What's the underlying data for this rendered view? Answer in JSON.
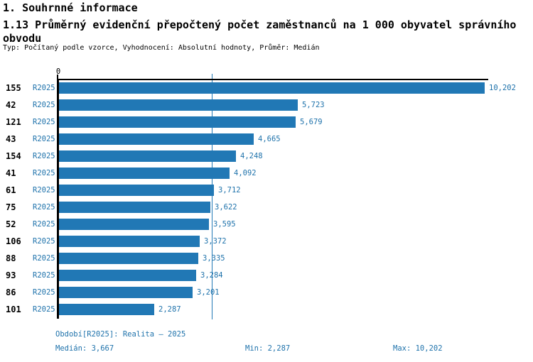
{
  "header": {
    "section_title": "1. Souhrnné informace",
    "indicator_title": "1.13 Průměrný evidenční přepočtený počet zaměstnanců na 1 000 obyvatel správního obvodu",
    "meta_line": "Typ: Počítaný podle vzorce, Vyhodnocení: Absolutní hodnoty, Průměr: Medián"
  },
  "chart_data": {
    "type": "bar",
    "orientation": "horizontal",
    "title": "1.13 Průměrný evidenční přepočtený počet zaměstnanců na 1 000 obyvatel správního obvodu",
    "axis_zero_label": "0",
    "period_label": "R2025",
    "categories": [
      "155",
      "42",
      "121",
      "43",
      "154",
      "41",
      "61",
      "75",
      "52",
      "106",
      "88",
      "93",
      "86",
      "101"
    ],
    "values": [
      10.202,
      5.723,
      5.679,
      4.665,
      4.248,
      4.092,
      3.712,
      3.622,
      3.595,
      3.372,
      3.335,
      3.284,
      3.201,
      2.287
    ],
    "value_labels": [
      "10,202",
      "5,723",
      "5,679",
      "4,665",
      "4,248",
      "4,092",
      "3,712",
      "3,622",
      "3,595",
      "3,372",
      "3,335",
      "3,284",
      "3,201",
      "2,287"
    ],
    "xlim": [
      0,
      10.27
    ],
    "median": 3.667,
    "min": 2.287,
    "max": 10.202,
    "grid": false,
    "legend_position": "none"
  },
  "colors": {
    "bar": "#2178b5",
    "accent_text": "#1e72ab",
    "axis": "#000000"
  },
  "footer": {
    "period_info": "Období[R2025]: Realita – 2025",
    "median_label": "Medián: 3,667",
    "min_label": "Min: 2,287",
    "max_label": "Max: 10,202"
  }
}
